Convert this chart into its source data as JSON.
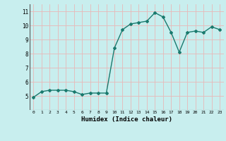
{
  "x": [
    0,
    1,
    2,
    3,
    4,
    5,
    6,
    7,
    8,
    9,
    10,
    11,
    12,
    13,
    14,
    15,
    16,
    17,
    18,
    19,
    20,
    21,
    22,
    23
  ],
  "y": [
    4.9,
    5.3,
    5.4,
    5.4,
    5.4,
    5.3,
    5.1,
    5.2,
    5.2,
    5.2,
    8.4,
    9.7,
    10.1,
    10.2,
    10.3,
    10.9,
    10.6,
    9.5,
    8.1,
    9.5,
    9.6,
    9.5,
    9.9,
    9.7
  ],
  "xlabel": "Humidex (Indice chaleur)",
  "ylim": [
    4,
    11.5
  ],
  "xlim": [
    -0.5,
    23.5
  ],
  "yticks": [
    5,
    6,
    7,
    8,
    9,
    10,
    11
  ],
  "xticks": [
    0,
    1,
    2,
    3,
    4,
    5,
    6,
    7,
    8,
    9,
    10,
    11,
    12,
    13,
    14,
    15,
    16,
    17,
    18,
    19,
    20,
    21,
    22,
    23
  ],
  "xtick_labels": [
    "0",
    "1",
    "2",
    "3",
    "4",
    "5",
    "6",
    "7",
    "8",
    "9",
    "10",
    "11",
    "12",
    "13",
    "14",
    "15",
    "16",
    "17",
    "18",
    "19",
    "20",
    "21",
    "22",
    "23"
  ],
  "line_color": "#1a7a6e",
  "marker": "D",
  "marker_size": 2,
  "bg_color": "#c8eeee",
  "grid_color": "#e8b8b8",
  "line_width": 1.0
}
